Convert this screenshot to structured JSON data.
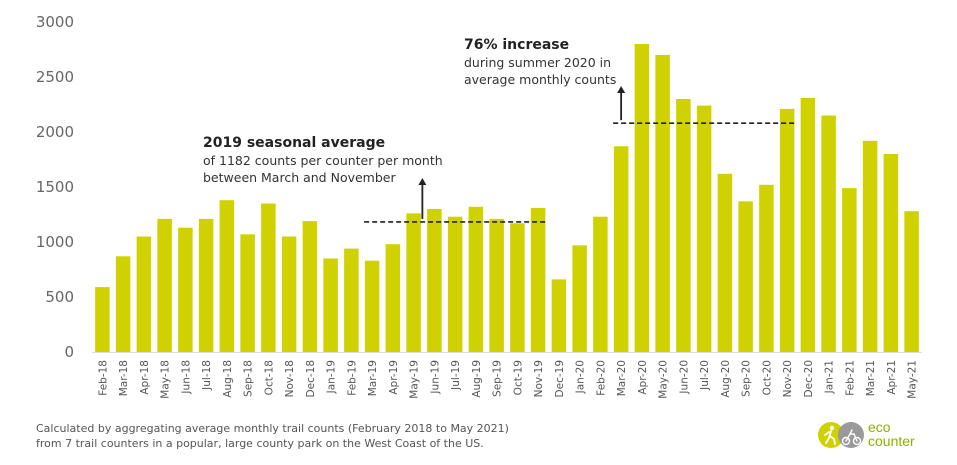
{
  "chart_data": {
    "type": "bar",
    "categories": [
      "Feb-18",
      "Mar-18",
      "Apr-18",
      "May-18",
      "Jun-18",
      "Jul-18",
      "Aug-18",
      "Sep-18",
      "Oct-18",
      "Nov-18",
      "Dec-18",
      "Jan-19",
      "Feb-19",
      "Mar-19",
      "Apr-19",
      "May-19",
      "Jun-19",
      "Jul-19",
      "Aug-19",
      "Sep-19",
      "Oct-19",
      "Nov-19",
      "Dec-19",
      "Jan-20",
      "Feb-20",
      "Mar-20",
      "Apr-20",
      "May-20",
      "Jun-20",
      "Jul-20",
      "Aug-20",
      "Sep-20",
      "Oct-20",
      "Nov-20",
      "Dec-20",
      "Jan-21",
      "Feb-21",
      "Mar-21",
      "Apr-21",
      "May-21"
    ],
    "values": [
      590,
      870,
      1050,
      1210,
      1130,
      1210,
      1380,
      1070,
      1350,
      1050,
      1190,
      850,
      940,
      830,
      980,
      1260,
      1300,
      1230,
      1320,
      1210,
      1170,
      1310,
      660,
      970,
      1230,
      1870,
      2800,
      2700,
      2300,
      2240,
      1620,
      1370,
      1520,
      2210,
      2310,
      2150,
      1490,
      1920,
      1800,
      1280
    ],
    "ylim": [
      0,
      3000
    ],
    "yticks": [
      0,
      500,
      1000,
      1500,
      2000,
      2500,
      3000
    ],
    "xlabel": "",
    "ylabel": "",
    "bar_color": "#cfd200",
    "grid": false,
    "reference_lines": [
      {
        "label": "2019 seasonal average",
        "value": 1182,
        "from": "Mar-19",
        "to": "Nov-19"
      },
      {
        "label": "summer 2020 average",
        "value": 2080,
        "from": "Mar-20",
        "to": "Nov-20"
      }
    ]
  },
  "annotations": {
    "seasonal": {
      "title": "2019 seasonal average",
      "line1": "of 1182 counts per counter per month",
      "line2": "between March and November"
    },
    "increase": {
      "title": "76% increase",
      "line1": "during summer 2020 in",
      "line2": "average monthly counts"
    }
  },
  "footnote": {
    "line1": "Calculated by aggregating average monthly trail counts (February 2018 to May 2021)",
    "line2": "from 7 trail counters in a popular, large county park on the West Coast of the US."
  },
  "logo": {
    "line1": "eco",
    "line2": "counter",
    "color": "#8cb000"
  }
}
